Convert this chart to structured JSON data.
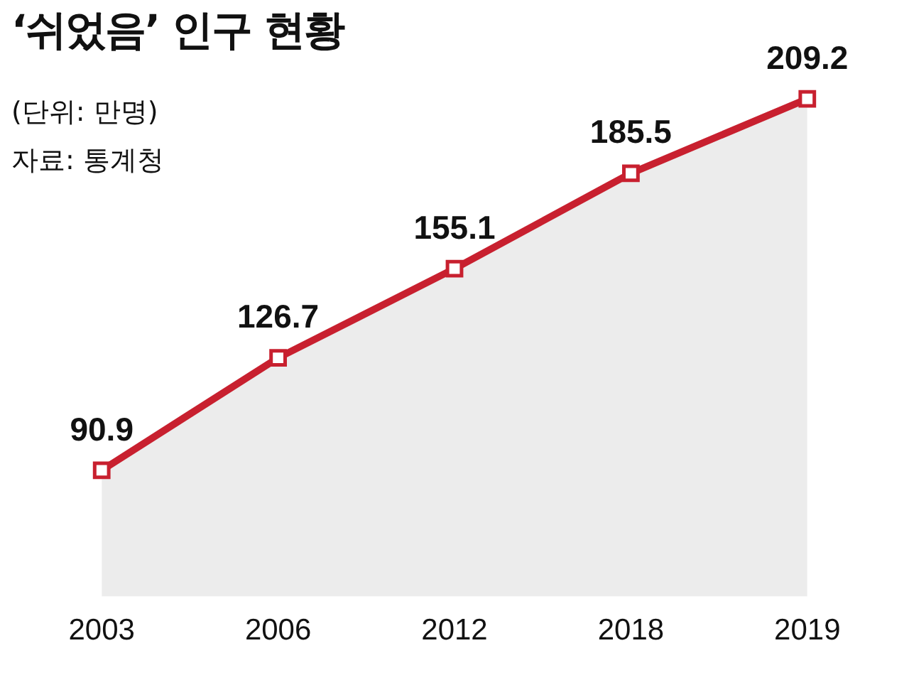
{
  "chart_data": {
    "type": "area",
    "title": "‘쉬었음’ 인구 현황",
    "subtitle": "(단위: 만명)",
    "annotations": [
      "자료: 통계청"
    ],
    "categories": [
      "2003",
      "2006",
      "2012",
      "2018",
      "2019"
    ],
    "series": [
      {
        "color": "#c8202f",
        "values": [
          90.9,
          126.7,
          155.1,
          185.5,
          209.2
        ]
      }
    ],
    "data_labels": true,
    "marker": "square"
  }
}
